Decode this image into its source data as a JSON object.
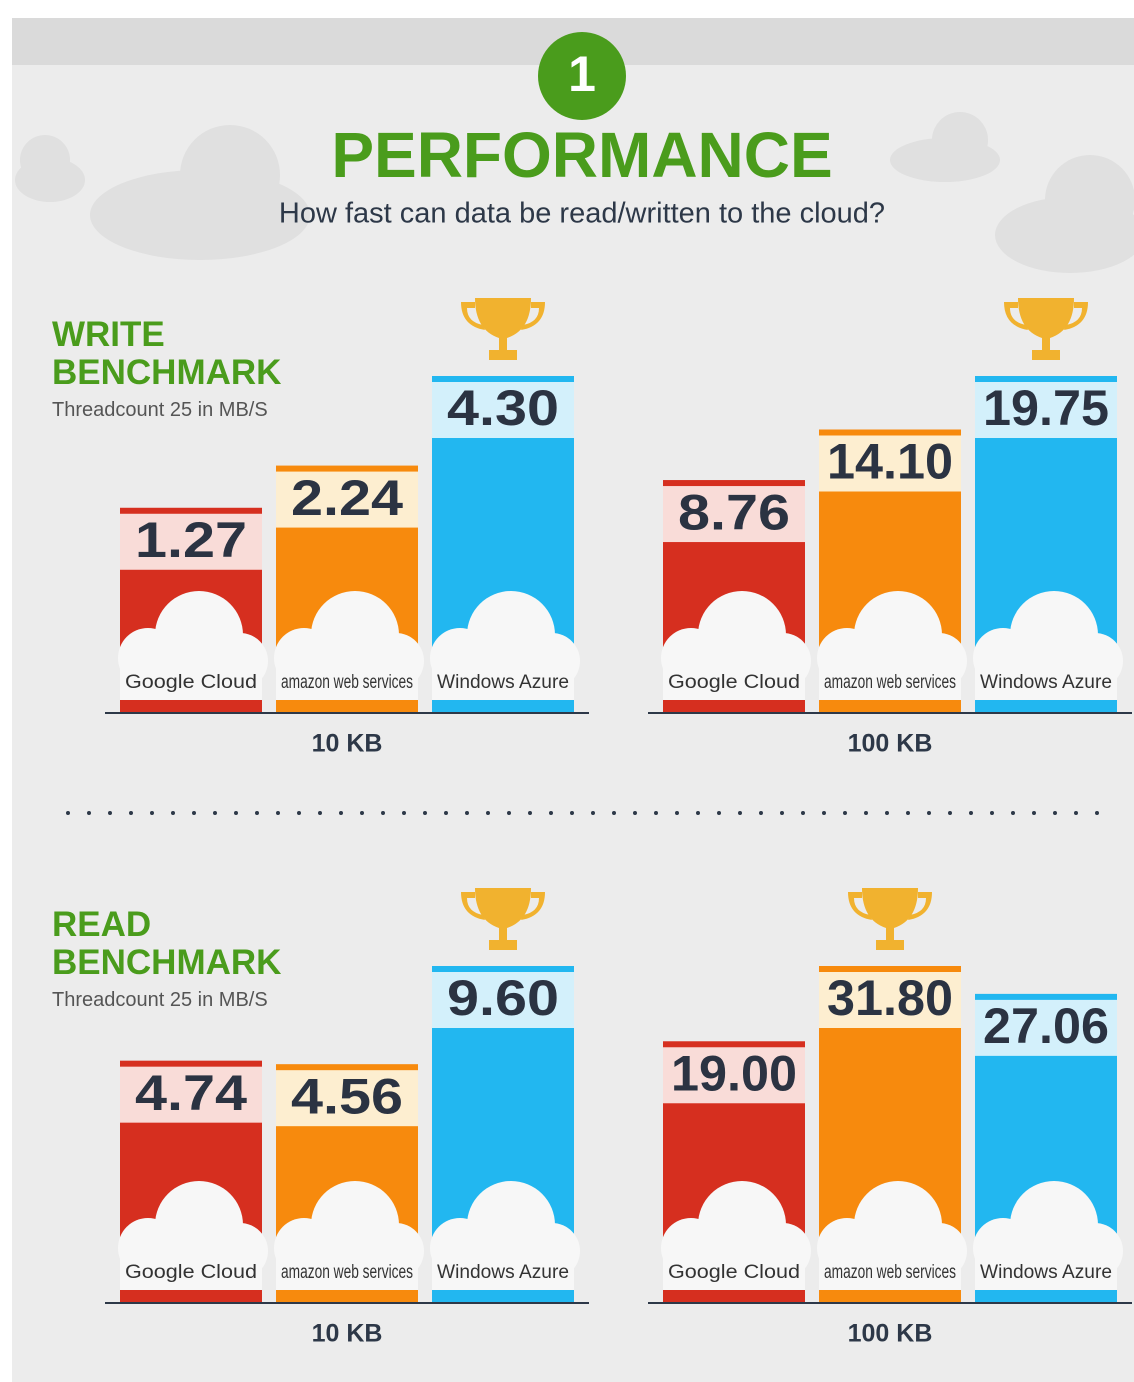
{
  "header": {
    "number": "1",
    "title": "PERFORMANCE",
    "subtitle": "How fast can data be read/written to the cloud?"
  },
  "chart_data": [
    {
      "type": "bar",
      "title": "WRITE BENCHMARK",
      "subtitle": "Threadcount 25 in MB/S",
      "xlabel": "10 KB",
      "categories": [
        "Google Cloud",
        "amazon web services",
        "Windows Azure"
      ],
      "values": [
        1.27,
        2.24,
        4.3
      ],
      "value_labels": [
        "1.27",
        "2.24",
        "4.30"
      ],
      "colors": [
        "#d62f1f",
        "#f78a0d",
        "#22b7f0"
      ],
      "label_colors": [
        "#f9dcd8",
        "#fdeed0",
        "#d3f0fb"
      ]
    },
    {
      "type": "bar",
      "xlabel": "100 KB",
      "categories": [
        "Google Cloud",
        "amazon web services",
        "Windows Azure"
      ],
      "values": [
        8.76,
        14.1,
        19.75
      ],
      "value_labels": [
        "8.76",
        "14.10",
        "19.75"
      ],
      "colors": [
        "#d62f1f",
        "#f78a0d",
        "#22b7f0"
      ],
      "label_colors": [
        "#f9dcd8",
        "#fdeed0",
        "#d3f0fb"
      ]
    },
    {
      "type": "bar",
      "title": "READ BENCHMARK",
      "subtitle": "Threadcount 25 in MB/S",
      "xlabel": "10 KB",
      "categories": [
        "Google Cloud",
        "amazon web services",
        "Windows Azure"
      ],
      "values": [
        4.74,
        4.56,
        9.6
      ],
      "value_labels": [
        "4.74",
        "4.56",
        "9.60"
      ],
      "colors": [
        "#d62f1f",
        "#f78a0d",
        "#22b7f0"
      ],
      "label_colors": [
        "#f9dcd8",
        "#fdeed0",
        "#d3f0fb"
      ]
    },
    {
      "type": "bar",
      "xlabel": "100 KB",
      "categories": [
        "Google Cloud",
        "amazon web services",
        "Windows Azure"
      ],
      "values": [
        19.0,
        31.8,
        27.06
      ],
      "value_labels": [
        "19.00",
        "31.80",
        "27.06"
      ],
      "colors": [
        "#d62f1f",
        "#f78a0d",
        "#22b7f0"
      ],
      "label_colors": [
        "#f9dcd8",
        "#fdeed0",
        "#d3f0fb"
      ]
    }
  ]
}
